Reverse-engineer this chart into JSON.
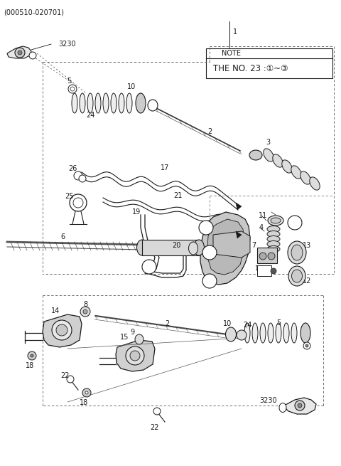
{
  "title": "(000510-020701)",
  "bg_color": "#ffffff",
  "line_color": "#1a1a1a",
  "fig_width": 4.8,
  "fig_height": 6.55,
  "dpi": 100,
  "note_line1": "NOTE",
  "note_line2": "THE NO. 23 :①~③"
}
